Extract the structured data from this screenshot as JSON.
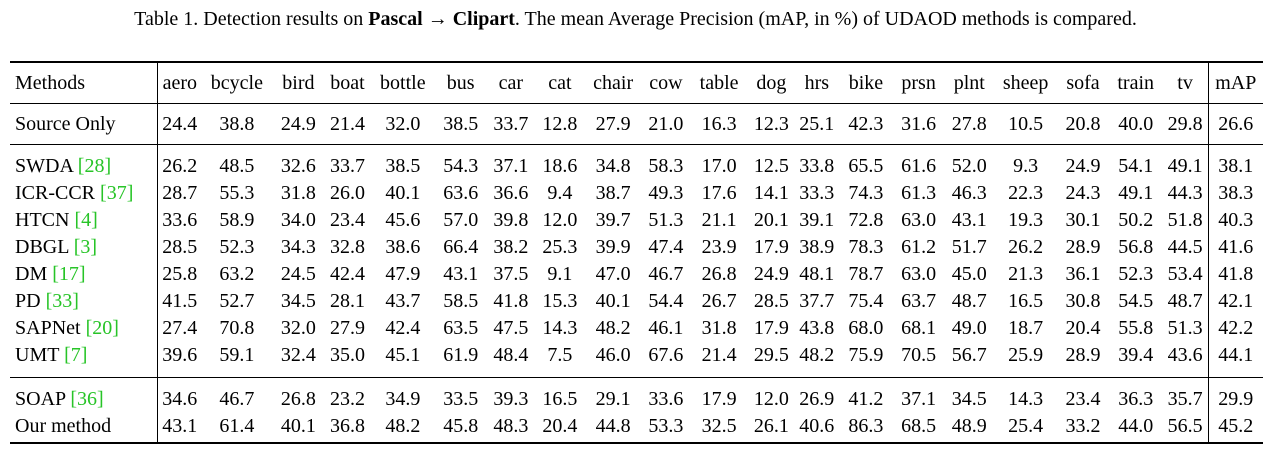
{
  "caption": {
    "prefix": "Table 1. Detection results on ",
    "source": "Pascal",
    "arrow": " → ",
    "target": "Clipart",
    "suffix": ". The mean Average Precision (mAP, in %) of UDAOD methods is compared."
  },
  "table": {
    "method_header": "Methods",
    "columns": [
      "aero",
      "bcycle",
      "bird",
      "boat",
      "bottle",
      "bus",
      "car",
      "cat",
      "chair",
      "cow",
      "table",
      "dog",
      "hrs",
      "bike",
      "prsn",
      "plnt",
      "sheep",
      "sofa",
      "train",
      "tv",
      "mAP"
    ],
    "groups": [
      [
        {
          "name": "Source Only",
          "cite": "",
          "values": [
            "24.4",
            "38.8",
            "24.9",
            "21.4",
            "32.0",
            "38.5",
            "33.7",
            "12.8",
            "27.9",
            "21.0",
            "16.3",
            "12.3",
            "25.1",
            "42.3",
            "31.6",
            "27.8",
            "10.5",
            "20.8",
            "40.0",
            "29.8",
            "26.6"
          ],
          "bold": []
        }
      ],
      [
        {
          "name": "SWDA ",
          "cite": "[28]",
          "values": [
            "26.2",
            "48.5",
            "32.6",
            "33.7",
            "38.5",
            "54.3",
            "37.1",
            "18.6",
            "34.8",
            "58.3",
            "17.0",
            "12.5",
            "33.8",
            "65.5",
            "61.6",
            "52.0",
            "9.3",
            "24.9",
            "54.1",
            "49.1",
            "38.1"
          ],
          "bold": []
        },
        {
          "name": "ICR-CCR ",
          "cite": "[37]",
          "values": [
            "28.7",
            "55.3",
            "31.8",
            "26.0",
            "40.1",
            "63.6",
            "36.6",
            "9.4",
            "38.7",
            "49.3",
            "17.6",
            "14.1",
            "33.3",
            "74.3",
            "61.3",
            "46.3",
            "22.3",
            "24.3",
            "49.1",
            "44.3",
            "38.3"
          ],
          "bold": []
        },
        {
          "name": "HTCN ",
          "cite": "[4]",
          "values": [
            "33.6",
            "58.9",
            "34.0",
            "23.4",
            "45.6",
            "57.0",
            "39.8",
            "12.0",
            "39.7",
            "51.3",
            "21.1",
            "20.1",
            "39.1",
            "72.8",
            "63.0",
            "43.1",
            "19.3",
            "30.1",
            "50.2",
            "51.8",
            "40.3"
          ],
          "bold": []
        },
        {
          "name": "DBGL ",
          "cite": "[3]",
          "values": [
            "28.5",
            "52.3",
            "34.3",
            "32.8",
            "38.6",
            "66.4",
            "38.2",
            "25.3",
            "39.9",
            "47.4",
            "23.9",
            "17.9",
            "38.9",
            "78.3",
            "61.2",
            "51.7",
            "26.2",
            "28.9",
            "56.8",
            "44.5",
            "41.6"
          ],
          "bold": [
            5,
            7,
            16,
            18
          ]
        },
        {
          "name": "DM ",
          "cite": "[17]",
          "values": [
            "25.8",
            "63.2",
            "24.5",
            "42.4",
            "47.9",
            "43.1",
            "37.5",
            "9.1",
            "47.0",
            "46.7",
            "26.8",
            "24.9",
            "48.1",
            "78.7",
            "63.0",
            "45.0",
            "21.3",
            "36.1",
            "52.3",
            "53.4",
            "41.8"
          ],
          "bold": [
            3,
            17
          ]
        },
        {
          "name": "PD ",
          "cite": "[33]",
          "values": [
            "41.5",
            "52.7",
            "34.5",
            "28.1",
            "43.7",
            "58.5",
            "41.8",
            "15.3",
            "40.1",
            "54.4",
            "26.7",
            "28.5",
            "37.7",
            "75.4",
            "63.7",
            "48.7",
            "16.5",
            "30.8",
            "54.5",
            "48.7",
            "42.1"
          ],
          "bold": []
        },
        {
          "name": "SAPNet ",
          "cite": "[20]",
          "values": [
            "27.4",
            "70.8",
            "32.0",
            "27.9",
            "42.4",
            "63.5",
            "47.5",
            "14.3",
            "48.2",
            "46.1",
            "31.8",
            "17.9",
            "43.8",
            "68.0",
            "68.1",
            "49.0",
            "18.7",
            "20.4",
            "55.8",
            "51.3",
            "42.2"
          ],
          "bold": [
            1,
            8
          ]
        },
        {
          "name": "UMT ",
          "cite": "[7]",
          "values": [
            "39.6",
            "59.1",
            "32.4",
            "35.0",
            "45.1",
            "61.9",
            "48.4",
            "7.5",
            "46.0",
            "67.6",
            "21.4",
            "29.5",
            "48.2",
            "75.9",
            "70.5",
            "56.7",
            "25.9",
            "28.9",
            "39.4",
            "43.6",
            "44.1"
          ],
          "bold": [
            6,
            9,
            11,
            12,
            14,
            15
          ]
        }
      ],
      [
        {
          "name": "SOAP ",
          "cite": "[36]",
          "values": [
            "34.6",
            "46.7",
            "26.8",
            "23.2",
            "34.9",
            "33.5",
            "39.3",
            "16.5",
            "29.1",
            "33.6",
            "17.9",
            "12.0",
            "26.9",
            "41.2",
            "37.1",
            "34.5",
            "14.3",
            "23.4",
            "36.3",
            "35.7",
            "29.9"
          ],
          "bold": []
        },
        {
          "name": "Our method",
          "cite": "",
          "values": [
            "43.1",
            "61.4",
            "40.1",
            "36.8",
            "48.2",
            "45.8",
            "48.3",
            "20.4",
            "44.8",
            "53.3",
            "32.5",
            "26.1",
            "40.6",
            "86.3",
            "68.5",
            "48.9",
            "25.4",
            "33.2",
            "44.0",
            "56.5",
            "45.2"
          ],
          "bold": [
            0,
            2,
            4,
            10,
            13,
            19,
            20
          ]
        }
      ]
    ]
  }
}
